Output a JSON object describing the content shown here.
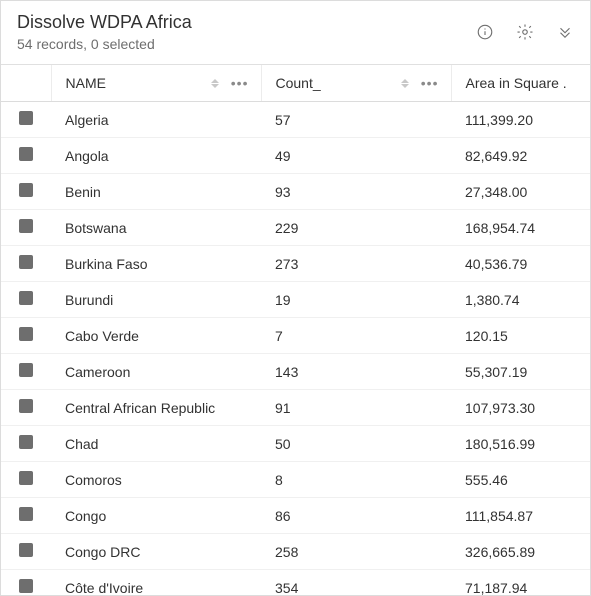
{
  "header": {
    "title": "Dissolve WDPA Africa",
    "subtitle": "54 records, 0 selected"
  },
  "colors": {
    "text": "#323232",
    "muted": "#6e6e6e",
    "border": "#dcdcdc",
    "rowBorder": "#f0f0f0",
    "selBox": "#6e6e6e",
    "sortIcon": "#c8c8c8"
  },
  "table": {
    "columns": [
      {
        "key": "name",
        "label": "NAME",
        "sortable": true,
        "menu": true
      },
      {
        "key": "count",
        "label": "Count_",
        "sortable": true,
        "menu": true
      },
      {
        "key": "area",
        "label": "Area in Square .",
        "sortable": false,
        "menu": false
      }
    ],
    "rows": [
      {
        "name": "Algeria",
        "count": "57",
        "area": "111,399.20"
      },
      {
        "name": "Angola",
        "count": "49",
        "area": "82,649.92"
      },
      {
        "name": "Benin",
        "count": "93",
        "area": "27,348.00"
      },
      {
        "name": "Botswana",
        "count": "229",
        "area": "168,954.74"
      },
      {
        "name": "Burkina Faso",
        "count": "273",
        "area": "40,536.79"
      },
      {
        "name": "Burundi",
        "count": "19",
        "area": "1,380.74"
      },
      {
        "name": "Cabo Verde",
        "count": "7",
        "area": "120.15"
      },
      {
        "name": "Cameroon",
        "count": "143",
        "area": "55,307.19"
      },
      {
        "name": "Central African Republic",
        "count": "91",
        "area": "107,973.30"
      },
      {
        "name": "Chad",
        "count": "50",
        "area": "180,516.99"
      },
      {
        "name": "Comoros",
        "count": "8",
        "area": "555.46"
      },
      {
        "name": "Congo",
        "count": "86",
        "area": "111,854.87"
      },
      {
        "name": "Congo DRC",
        "count": "258",
        "area": "326,665.89"
      },
      {
        "name": "Côte d'Ivoire",
        "count": "354",
        "area": "71,187.94"
      }
    ]
  }
}
